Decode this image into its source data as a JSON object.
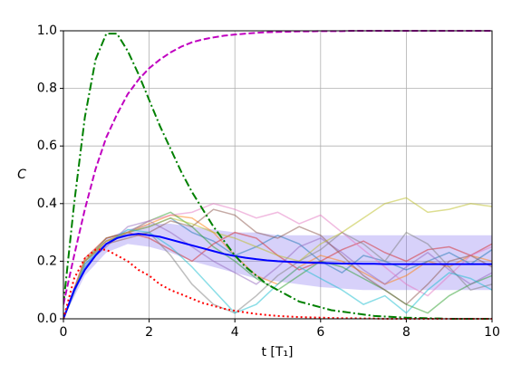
{
  "chart_data": {
    "type": "line",
    "x_label": "t [T₁]",
    "y_label": "C",
    "xlim": [
      0,
      10
    ],
    "ylim": [
      0,
      1
    ],
    "xticks": [
      0,
      2,
      4,
      6,
      8,
      10
    ],
    "yticks": [
      {
        "value": 0,
        "label": "0.0"
      },
      0.2,
      0.4,
      0.6,
      0.8,
      {
        "value": 1,
        "label": "1.0"
      }
    ],
    "grid": true,
    "band": {
      "color": "#7b68ee",
      "opacity": 0.3,
      "x": [
        0,
        0.5,
        1,
        1.5,
        2,
        2.5,
        3,
        3.5,
        4,
        4.5,
        5,
        5.5,
        6,
        6.5,
        7,
        7.5,
        8,
        8.5,
        9,
        9.5,
        10
      ],
      "lower": [
        0,
        0.15,
        0.23,
        0.26,
        0.25,
        0.23,
        0.2,
        0.18,
        0.16,
        0.14,
        0.13,
        0.12,
        0.11,
        0.105,
        0.1,
        0.1,
        0.1,
        0.1,
        0.1,
        0.1,
        0.1
      ],
      "upper": [
        0,
        0.2,
        0.28,
        0.31,
        0.33,
        0.33,
        0.32,
        0.31,
        0.3,
        0.3,
        0.29,
        0.29,
        0.29,
        0.29,
        0.29,
        0.29,
        0.29,
        0.29,
        0.29,
        0.29,
        0.29
      ]
    },
    "series": [
      {
        "color": "#ff7f0e",
        "style": "solid",
        "opacity": 0.5,
        "x": [
          0,
          0.5,
          1,
          1.5,
          2,
          2.5,
          3,
          3.5,
          4,
          4.5,
          5,
          5.5,
          6,
          6.5,
          7,
          7.5,
          8,
          8.5,
          9,
          9.5,
          10
        ],
        "values": [
          0,
          0.2,
          0.27,
          0.3,
          0.33,
          0.36,
          0.35,
          0.3,
          0.22,
          0.15,
          0.12,
          0.18,
          0.22,
          0.2,
          0.16,
          0.12,
          0.15,
          0.2,
          0.18,
          0.22,
          0.2
        ]
      },
      {
        "color": "#1f77b4",
        "style": "solid",
        "opacity": 0.5,
        "x": [
          0,
          0.5,
          1,
          1.5,
          2,
          2.5,
          3,
          3.5,
          4,
          4.5,
          5,
          5.5,
          6,
          6.5,
          7,
          7.5,
          8,
          8.5,
          9,
          9.5,
          10
        ],
        "values": [
          0,
          0.18,
          0.26,
          0.3,
          0.32,
          0.35,
          0.3,
          0.27,
          0.22,
          0.25,
          0.29,
          0.26,
          0.2,
          0.16,
          0.22,
          0.2,
          0.17,
          0.2,
          0.23,
          0.19,
          0.24
        ]
      },
      {
        "color": "#2ca02c",
        "style": "solid",
        "opacity": 0.5,
        "x": [
          0,
          0.5,
          1,
          1.5,
          2,
          2.5,
          3,
          3.5,
          4,
          4.5,
          5,
          5.5,
          6,
          6.5,
          7,
          7.5,
          8,
          8.5,
          9,
          9.5,
          10
        ],
        "values": [
          0,
          0.2,
          0.28,
          0.3,
          0.34,
          0.37,
          0.32,
          0.25,
          0.2,
          0.14,
          0.1,
          0.15,
          0.2,
          0.18,
          0.14,
          0.1,
          0.05,
          0.02,
          0.08,
          0.12,
          0.15
        ]
      },
      {
        "color": "#d62728",
        "style": "solid",
        "opacity": 0.5,
        "x": [
          0,
          0.5,
          1,
          1.5,
          2,
          2.5,
          3,
          3.5,
          4,
          4.5,
          5,
          5.5,
          6,
          6.5,
          7,
          7.5,
          8,
          8.5,
          9,
          9.5,
          10
        ],
        "values": [
          0,
          0.21,
          0.28,
          0.3,
          0.28,
          0.24,
          0.2,
          0.26,
          0.3,
          0.28,
          0.22,
          0.17,
          0.2,
          0.24,
          0.27,
          0.23,
          0.2,
          0.24,
          0.25,
          0.22,
          0.26
        ]
      },
      {
        "color": "#9467bd",
        "style": "solid",
        "opacity": 0.5,
        "x": [
          0,
          0.5,
          1,
          1.5,
          2,
          2.5,
          3,
          3.5,
          4,
          4.5,
          5,
          5.5,
          6,
          6.5,
          7,
          7.5,
          8,
          8.5,
          9,
          9.5,
          10
        ],
        "values": [
          0,
          0.19,
          0.25,
          0.32,
          0.34,
          0.3,
          0.25,
          0.2,
          0.16,
          0.12,
          0.18,
          0.25,
          0.28,
          0.23,
          0.17,
          0.12,
          0.18,
          0.23,
          0.17,
          0.12,
          0.16
        ]
      },
      {
        "color": "#8c564b",
        "style": "solid",
        "opacity": 0.5,
        "x": [
          0,
          0.5,
          1,
          1.5,
          2,
          2.5,
          3,
          3.5,
          4,
          4.5,
          5,
          5.5,
          6,
          6.5,
          7,
          7.5,
          8,
          8.5,
          9,
          9.5,
          10
        ],
        "values": [
          0,
          0.2,
          0.26,
          0.28,
          0.3,
          0.34,
          0.32,
          0.38,
          0.36,
          0.3,
          0.28,
          0.32,
          0.29,
          0.22,
          0.15,
          0.1,
          0.05,
          0.12,
          0.2,
          0.22,
          0.18
        ]
      },
      {
        "color": "#e377c2",
        "style": "solid",
        "opacity": 0.5,
        "x": [
          0,
          0.5,
          1,
          1.5,
          2,
          2.5,
          3,
          3.5,
          4,
          4.5,
          5,
          5.5,
          6,
          6.5,
          7,
          7.5,
          8,
          8.5,
          9,
          9.5,
          10
        ],
        "values": [
          0,
          0.2,
          0.27,
          0.3,
          0.34,
          0.36,
          0.37,
          0.4,
          0.38,
          0.35,
          0.37,
          0.33,
          0.36,
          0.3,
          0.24,
          0.18,
          0.12,
          0.08,
          0.15,
          0.22,
          0.25
        ]
      },
      {
        "color": "#7f7f7f",
        "style": "solid",
        "opacity": 0.5,
        "x": [
          0,
          0.5,
          1,
          1.5,
          2,
          2.5,
          3,
          3.5,
          4,
          4.5,
          5,
          5.5,
          6,
          6.5,
          7,
          7.5,
          8,
          8.5,
          9,
          9.5,
          10
        ],
        "values": [
          0,
          0.2,
          0.27,
          0.29,
          0.3,
          0.22,
          0.12,
          0.05,
          0.02,
          0.08,
          0.15,
          0.2,
          0.24,
          0.3,
          0.26,
          0.2,
          0.3,
          0.26,
          0.18,
          0.1,
          0.12
        ]
      },
      {
        "color": "#bcbd22",
        "style": "solid",
        "opacity": 0.5,
        "x": [
          0,
          0.5,
          1,
          1.5,
          2,
          2.5,
          3,
          3.5,
          4,
          4.5,
          5,
          5.5,
          6,
          6.5,
          7,
          7.5,
          8,
          8.5,
          9,
          9.5,
          10
        ],
        "values": [
          0,
          0.2,
          0.27,
          0.3,
          0.32,
          0.35,
          0.33,
          0.3,
          0.28,
          0.25,
          0.22,
          0.2,
          0.26,
          0.3,
          0.35,
          0.4,
          0.42,
          0.37,
          0.38,
          0.4,
          0.39
        ]
      },
      {
        "color": "#17becf",
        "style": "solid",
        "opacity": 0.5,
        "x": [
          0,
          0.5,
          1,
          1.5,
          2,
          2.5,
          3,
          3.5,
          4,
          4.5,
          5,
          5.5,
          6,
          6.5,
          7,
          7.5,
          8,
          8.5,
          9,
          9.5,
          10
        ],
        "values": [
          0,
          0.19,
          0.26,
          0.31,
          0.3,
          0.25,
          0.18,
          0.1,
          0.02,
          0.05,
          0.12,
          0.18,
          0.14,
          0.1,
          0.05,
          0.08,
          0.02,
          0.1,
          0.16,
          0.14,
          0.1
        ]
      },
      {
        "color": "#0000ff",
        "style": "solid",
        "opacity": 1,
        "x": [
          0,
          0.25,
          0.5,
          0.75,
          1,
          1.25,
          1.5,
          1.75,
          2,
          2.25,
          2.5,
          2.75,
          3,
          3.25,
          3.5,
          3.75,
          4,
          4.25,
          4.5,
          4.75,
          5,
          5.25,
          5.5,
          5.75,
          6,
          6.25,
          6.5,
          6.75,
          7,
          7.25,
          7.5,
          7.75,
          8,
          8.25,
          8.5,
          8.75,
          9,
          9.25,
          9.5,
          9.75,
          10
        ],
        "values": [
          0,
          0.1,
          0.17,
          0.22,
          0.26,
          0.28,
          0.29,
          0.295,
          0.29,
          0.285,
          0.275,
          0.265,
          0.255,
          0.245,
          0.235,
          0.225,
          0.218,
          0.212,
          0.207,
          0.203,
          0.2,
          0.198,
          0.196,
          0.195,
          0.194,
          0.193,
          0.192,
          0.192,
          0.191,
          0.191,
          0.19,
          0.19,
          0.19,
          0.19,
          0.19,
          0.19,
          0.19,
          0.19,
          0.19,
          0.19,
          0.19
        ]
      },
      {
        "color": "#008000",
        "style": "dashdot",
        "opacity": 1,
        "x": [
          0,
          0.25,
          0.5,
          0.75,
          1,
          1.25,
          1.5,
          1.75,
          2,
          2.25,
          2.5,
          2.75,
          3,
          3.25,
          3.5,
          3.75,
          4,
          4.25,
          4.5,
          4.75,
          5,
          5.25,
          5.5,
          5.75,
          6,
          6.25,
          6.5,
          6.75,
          7,
          7.25,
          7.5,
          7.75,
          8,
          8.25,
          8.5,
          8.75,
          9,
          9.25,
          9.5,
          9.75,
          10
        ],
        "values": [
          0.05,
          0.4,
          0.7,
          0.9,
          0.99,
          0.99,
          0.93,
          0.85,
          0.76,
          0.67,
          0.59,
          0.51,
          0.44,
          0.38,
          0.32,
          0.27,
          0.22,
          0.18,
          0.15,
          0.12,
          0.1,
          0.08,
          0.06,
          0.05,
          0.04,
          0.03,
          0.025,
          0.02,
          0.015,
          0.01,
          0.008,
          0.006,
          0.004,
          0.003,
          0.002,
          0.001,
          0,
          0,
          0,
          0,
          0
        ]
      },
      {
        "color": "#c000c0",
        "style": "dashed",
        "opacity": 1,
        "x": [
          0,
          0.25,
          0.5,
          0.75,
          1,
          1.25,
          1.5,
          1.75,
          2,
          2.25,
          2.5,
          2.75,
          3,
          3.25,
          3.5,
          3.75,
          4,
          4.25,
          4.5,
          4.75,
          5,
          5.25,
          5.5,
          5.75,
          6,
          6.25,
          6.5,
          6.75,
          7,
          7.25,
          7.5,
          7.75,
          8,
          8.25,
          8.5,
          8.75,
          9,
          9.25,
          9.5,
          9.75,
          10
        ],
        "values": [
          0.05,
          0.22,
          0.38,
          0.52,
          0.63,
          0.71,
          0.78,
          0.83,
          0.87,
          0.9,
          0.925,
          0.945,
          0.96,
          0.97,
          0.977,
          0.983,
          0.987,
          0.99,
          0.993,
          0.995,
          0.996,
          0.997,
          0.998,
          0.998,
          0.999,
          0.999,
          0.999,
          1,
          1,
          1,
          1,
          1,
          1,
          1,
          1,
          1,
          1,
          1,
          1,
          1,
          1
        ]
      },
      {
        "color": "#ff0000",
        "style": "dotted",
        "opacity": 1,
        "x": [
          0,
          0.25,
          0.5,
          0.75,
          1,
          1.25,
          1.5,
          1.75,
          2,
          2.25,
          2.5,
          2.75,
          3,
          3.25,
          3.5,
          3.75,
          4,
          4.25,
          4.5,
          4.75,
          5,
          5.25,
          5.5,
          5.75,
          6,
          6.25,
          6.5,
          6.75,
          7,
          7.25,
          7.5,
          7.75,
          8,
          8.25,
          8.5,
          8.75,
          9,
          9.25,
          9.5,
          9.75,
          10
        ],
        "values": [
          0,
          0.14,
          0.21,
          0.24,
          0.24,
          0.22,
          0.2,
          0.17,
          0.15,
          0.12,
          0.1,
          0.085,
          0.07,
          0.055,
          0.045,
          0.035,
          0.028,
          0.022,
          0.017,
          0.013,
          0.01,
          0.008,
          0.006,
          0.005,
          0.004,
          0.003,
          0.002,
          0.002,
          0.001,
          0.001,
          0,
          0,
          0,
          0,
          0,
          0,
          0,
          0,
          0,
          0,
          0
        ]
      }
    ]
  }
}
